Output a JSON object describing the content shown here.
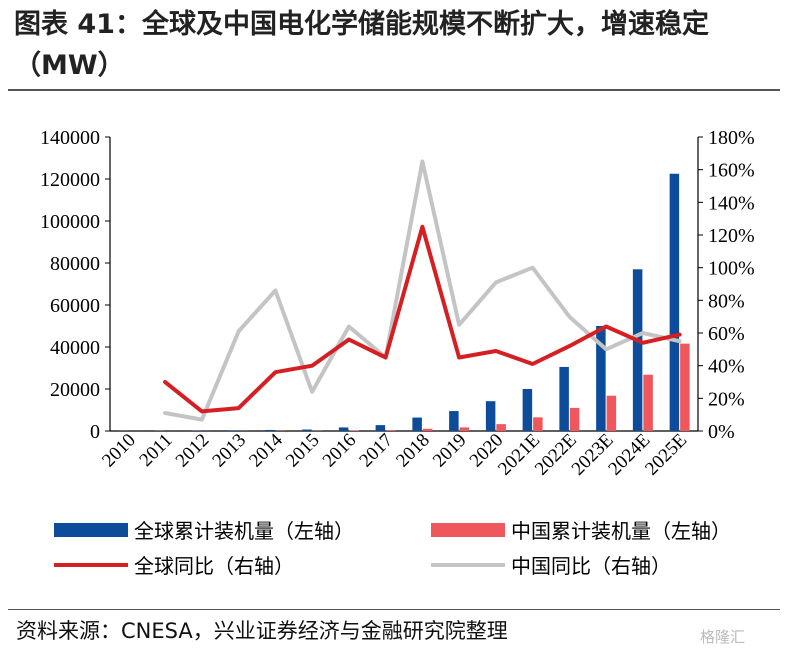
{
  "title": "图表 41：全球及中国电化学储能规模不断扩大，增速稳定（MW）",
  "source": "资料来源：CNESA，兴业证券经济与金融研究院整理",
  "watermark": "格隆汇",
  "chart_data": {
    "type": "bar",
    "categories": [
      "2010",
      "2011",
      "2012",
      "2013",
      "2014",
      "2015",
      "2016",
      "2017",
      "2018",
      "2019",
      "2020",
      "2021E",
      "2022E",
      "2023E",
      "2024E",
      "2025E"
    ],
    "y_left": {
      "ticks": [
        "0",
        "20000",
        "40000",
        "60000",
        "80000",
        "100000",
        "120000",
        "140000"
      ],
      "ylim": [
        0,
        140000
      ]
    },
    "y_right": {
      "ticks": [
        "0%",
        "20%",
        "40%",
        "60%",
        "80%",
        "100%",
        "120%",
        "140%",
        "160%",
        "180%"
      ],
      "ylim": [
        0,
        1.8
      ]
    },
    "series": [
      {
        "name": "全球累计装机量（左轴）",
        "kind": "bar",
        "axis": "left",
        "color": "#0d4c9a",
        "values": [
          100,
          150,
          200,
          300,
          500,
          700,
          1700,
          2800,
          6400,
          9500,
          14200,
          20000,
          30500,
          50000,
          77000,
          122500
        ]
      },
      {
        "name": "中国累计装机量（左轴）",
        "kind": "bar",
        "axis": "left",
        "color": "#f0575c",
        "values": [
          10,
          20,
          30,
          50,
          90,
          110,
          240,
          390,
          1070,
          1710,
          3270,
          6500,
          11000,
          16800,
          26800,
          41600
        ]
      },
      {
        "name": "全球同比（右轴）",
        "kind": "line",
        "axis": "right",
        "color": "#d61f23",
        "values": [
          null,
          0.3,
          0.12,
          0.14,
          0.36,
          0.4,
          0.56,
          0.45,
          1.25,
          0.45,
          0.49,
          0.41,
          0.52,
          0.64,
          0.54,
          0.59
        ]
      },
      {
        "name": "中国同比（右轴）",
        "kind": "line",
        "axis": "right",
        "color": "#c4c4c4",
        "values": [
          null,
          0.11,
          0.07,
          0.61,
          0.86,
          0.24,
          0.64,
          0.45,
          1.65,
          0.65,
          0.91,
          1.0,
          0.7,
          0.5,
          0.6,
          0.55
        ]
      }
    ],
    "legend": "bottom"
  }
}
